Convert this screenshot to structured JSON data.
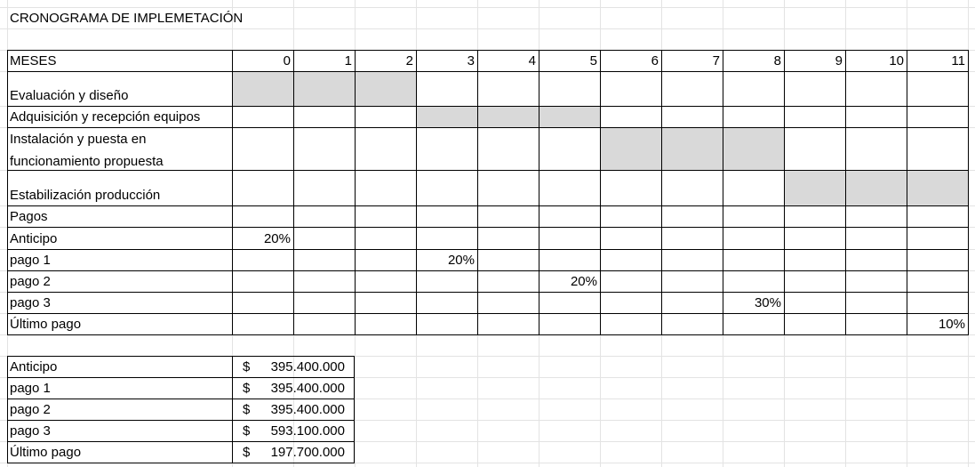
{
  "sheet": {
    "title": "CRONOGRAMA  DE IMPLEMETACIÓN",
    "header_label": "MESES",
    "months": [
      "0",
      "1",
      "2",
      "3",
      "4",
      "5",
      "6",
      "7",
      "8",
      "9",
      "10",
      "11"
    ],
    "fill_color": "#d9d9d9",
    "activities": [
      {
        "label": "Evaluación y diseño",
        "months": [
          0,
          1,
          2
        ]
      },
      {
        "label": "Adquisición y recepción equipos",
        "months": [
          3,
          4,
          5
        ]
      },
      {
        "label": "Instalación y puesta en funcionamiento propuesta",
        "months": [
          6,
          7,
          8
        ]
      },
      {
        "label": "Estabilización producción",
        "months": [
          9,
          10,
          11
        ]
      }
    ],
    "payments_label": "Pagos",
    "payments": [
      {
        "label": "Anticipo",
        "month": 0,
        "percent": "20%"
      },
      {
        "label": "pago 1",
        "month": 3,
        "percent": "20%"
      },
      {
        "label": "pago 2",
        "month": 5,
        "percent": "20%"
      },
      {
        "label": "pago 3",
        "month": 8,
        "percent": "30%"
      },
      {
        "label": "Último pago",
        "month": 11,
        "percent": "10%"
      }
    ],
    "amounts": [
      {
        "label": "Anticipo",
        "currency": "$",
        "amount": "395.400.000"
      },
      {
        "label": "pago 1",
        "currency": "$",
        "amount": "395.400.000"
      },
      {
        "label": "pago 2",
        "currency": "$",
        "amount": "395.400.000"
      },
      {
        "label": "pago 3",
        "currency": "$",
        "amount": "593.100.000"
      },
      {
        "label": "Último pago",
        "currency": "$",
        "amount": "197.700.000"
      }
    ]
  }
}
